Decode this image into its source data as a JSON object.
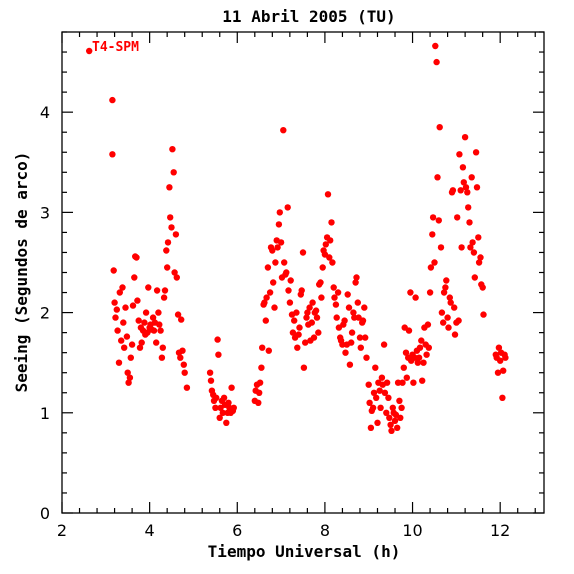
{
  "chart_data": {
    "type": "scatter",
    "title": "11 Abril 2005 (TU)",
    "xlabel": "Tiempo Universal (h)",
    "ylabel": "Seeing (Segundos de arco)",
    "xlim": [
      2,
      13
    ],
    "ylim": [
      0,
      4.8
    ],
    "xticks": [
      2,
      4,
      6,
      8,
      10,
      12
    ],
    "yticks": [
      0,
      1,
      2,
      3,
      4
    ],
    "grid": false,
    "marker_color": "#ff0000",
    "annotation": "T4-SPM",
    "series": [
      {
        "points": [
          [
            2.62,
            4.61
          ],
          [
            3.15,
            4.12
          ],
          [
            3.15,
            3.58
          ],
          [
            3.18,
            2.42
          ],
          [
            3.2,
            2.1
          ],
          [
            3.22,
            1.95
          ],
          [
            3.25,
            2.03
          ],
          [
            3.27,
            1.82
          ],
          [
            3.3,
            1.5
          ],
          [
            3.32,
            2.2
          ],
          [
            3.35,
            1.72
          ],
          [
            3.38,
            2.25
          ],
          [
            3.4,
            1.9
          ],
          [
            3.42,
            1.65
          ],
          [
            3.45,
            2.05
          ],
          [
            3.48,
            1.76
          ],
          [
            3.5,
            1.4
          ],
          [
            3.52,
            1.3
          ],
          [
            3.55,
            1.35
          ],
          [
            3.57,
            1.55
          ],
          [
            3.6,
            1.68
          ],
          [
            3.62,
            2.07
          ],
          [
            3.65,
            2.35
          ],
          [
            3.67,
            2.56
          ],
          [
            3.7,
            2.55
          ],
          [
            3.72,
            2.12
          ],
          [
            3.75,
            1.92
          ],
          [
            3.78,
            1.65
          ],
          [
            3.8,
            1.85
          ],
          [
            3.82,
            1.7
          ],
          [
            3.85,
            1.82
          ],
          [
            3.88,
            1.9
          ],
          [
            3.9,
            1.78
          ],
          [
            3.92,
            2.0
          ],
          [
            3.95,
            1.8
          ],
          [
            3.97,
            2.25
          ],
          [
            4.0,
            1.85
          ],
          [
            4.02,
            1.88
          ],
          [
            4.05,
            1.83
          ],
          [
            4.08,
            1.95
          ],
          [
            4.1,
            1.82
          ],
          [
            4.12,
            1.9
          ],
          [
            4.15,
            1.7
          ],
          [
            4.17,
            2.22
          ],
          [
            4.2,
            2.0
          ],
          [
            4.22,
            1.88
          ],
          [
            4.25,
            1.82
          ],
          [
            4.28,
            1.55
          ],
          [
            4.3,
            1.65
          ],
          [
            4.33,
            2.15
          ],
          [
            4.35,
            2.22
          ],
          [
            4.38,
            2.62
          ],
          [
            4.4,
            2.45
          ],
          [
            4.42,
            2.7
          ],
          [
            4.45,
            3.25
          ],
          [
            4.47,
            2.95
          ],
          [
            4.5,
            2.85
          ],
          [
            4.52,
            3.63
          ],
          [
            4.55,
            3.4
          ],
          [
            4.57,
            2.4
          ],
          [
            4.6,
            2.78
          ],
          [
            4.62,
            2.35
          ],
          [
            4.65,
            1.98
          ],
          [
            4.67,
            1.6
          ],
          [
            4.7,
            1.55
          ],
          [
            4.72,
            1.93
          ],
          [
            4.75,
            1.62
          ],
          [
            4.78,
            1.48
          ],
          [
            4.8,
            1.4
          ],
          [
            4.85,
            1.25
          ],
          [
            5.38,
            1.4
          ],
          [
            5.4,
            1.32
          ],
          [
            5.42,
            1.22
          ],
          [
            5.45,
            1.18
          ],
          [
            5.47,
            1.12
          ],
          [
            5.5,
            1.05
          ],
          [
            5.52,
            1.15
          ],
          [
            5.55,
            1.73
          ],
          [
            5.57,
            1.58
          ],
          [
            5.6,
            0.95
          ],
          [
            5.62,
            1.05
          ],
          [
            5.65,
            1.12
          ],
          [
            5.67,
            1.0
          ],
          [
            5.7,
            1.15
          ],
          [
            5.72,
            1.08
          ],
          [
            5.75,
            0.9
          ],
          [
            5.78,
            1.0
          ],
          [
            5.8,
            1.1
          ],
          [
            5.82,
            1.05
          ],
          [
            5.85,
            1.0
          ],
          [
            5.87,
            1.25
          ],
          [
            5.9,
            1.02
          ],
          [
            5.92,
            1.05
          ],
          [
            6.4,
            1.12
          ],
          [
            6.42,
            1.22
          ],
          [
            6.45,
            1.28
          ],
          [
            6.48,
            1.1
          ],
          [
            6.5,
            1.2
          ],
          [
            6.52,
            1.3
          ],
          [
            6.55,
            1.45
          ],
          [
            6.57,
            1.65
          ],
          [
            6.6,
            2.08
          ],
          [
            6.62,
            2.1
          ],
          [
            6.65,
            1.92
          ],
          [
            6.67,
            2.15
          ],
          [
            6.7,
            2.45
          ],
          [
            6.72,
            1.62
          ],
          [
            6.75,
            2.2
          ],
          [
            6.77,
            2.65
          ],
          [
            6.8,
            2.62
          ],
          [
            6.82,
            2.3
          ],
          [
            6.85,
            2.05
          ],
          [
            6.87,
            2.5
          ],
          [
            6.9,
            2.72
          ],
          [
            6.92,
            2.65
          ],
          [
            6.95,
            2.88
          ],
          [
            6.97,
            3.0
          ],
          [
            7.0,
            2.7
          ],
          [
            7.02,
            2.35
          ],
          [
            7.05,
            3.82
          ],
          [
            7.07,
            2.5
          ],
          [
            7.1,
            2.38
          ],
          [
            7.12,
            2.4
          ],
          [
            7.15,
            3.05
          ],
          [
            7.17,
            2.22
          ],
          [
            7.2,
            2.1
          ],
          [
            7.22,
            2.32
          ],
          [
            7.25,
            1.98
          ],
          [
            7.27,
            1.8
          ],
          [
            7.3,
            1.92
          ],
          [
            7.32,
            1.75
          ],
          [
            7.35,
            2.0
          ],
          [
            7.37,
            1.65
          ],
          [
            7.4,
            1.78
          ],
          [
            7.42,
            1.85
          ],
          [
            7.45,
            2.18
          ],
          [
            7.47,
            2.22
          ],
          [
            7.5,
            2.6
          ],
          [
            7.52,
            1.45
          ],
          [
            7.55,
            1.7
          ],
          [
            7.58,
            1.95
          ],
          [
            7.6,
            2.0
          ],
          [
            7.62,
            1.88
          ],
          [
            7.65,
            2.05
          ],
          [
            7.67,
            1.72
          ],
          [
            7.7,
            1.9
          ],
          [
            7.72,
            2.1
          ],
          [
            7.75,
            1.75
          ],
          [
            7.77,
            2.0
          ],
          [
            7.8,
            2.02
          ],
          [
            7.82,
            1.95
          ],
          [
            7.85,
            1.8
          ],
          [
            7.87,
            2.28
          ],
          [
            7.9,
            2.3
          ],
          [
            7.92,
            2.15
          ],
          [
            7.95,
            2.45
          ],
          [
            7.97,
            2.62
          ],
          [
            8.0,
            2.58
          ],
          [
            8.02,
            2.68
          ],
          [
            8.05,
            2.75
          ],
          [
            8.07,
            3.18
          ],
          [
            8.1,
            2.55
          ],
          [
            8.12,
            2.72
          ],
          [
            8.15,
            2.9
          ],
          [
            8.17,
            2.5
          ],
          [
            8.2,
            2.25
          ],
          [
            8.22,
            2.15
          ],
          [
            8.25,
            2.08
          ],
          [
            8.27,
            1.95
          ],
          [
            8.3,
            2.2
          ],
          [
            8.32,
            1.85
          ],
          [
            8.35,
            1.75
          ],
          [
            8.37,
            1.72
          ],
          [
            8.4,
            1.68
          ],
          [
            8.42,
            1.88
          ],
          [
            8.45,
            1.92
          ],
          [
            8.47,
            1.6
          ],
          [
            8.5,
            1.68
          ],
          [
            8.52,
            2.18
          ],
          [
            8.55,
            2.05
          ],
          [
            8.57,
            1.48
          ],
          [
            8.6,
            1.7
          ],
          [
            8.62,
            1.8
          ],
          [
            8.65,
            2.0
          ],
          [
            8.67,
            1.95
          ],
          [
            8.7,
            2.3
          ],
          [
            8.72,
            2.35
          ],
          [
            8.75,
            2.1
          ],
          [
            8.77,
            1.95
          ],
          [
            8.8,
            1.75
          ],
          [
            8.82,
            1.65
          ],
          [
            8.85,
            1.9
          ],
          [
            8.87,
            1.92
          ],
          [
            8.9,
            2.05
          ],
          [
            8.92,
            1.75
          ],
          [
            8.95,
            1.55
          ],
          [
            9.0,
            1.28
          ],
          [
            9.02,
            1.1
          ],
          [
            9.05,
            0.85
          ],
          [
            9.07,
            1.02
          ],
          [
            9.1,
            1.05
          ],
          [
            9.12,
            1.2
          ],
          [
            9.15,
            1.45
          ],
          [
            9.17,
            1.15
          ],
          [
            9.2,
            0.9
          ],
          [
            9.22,
            1.3
          ],
          [
            9.25,
            1.22
          ],
          [
            9.27,
            1.05
          ],
          [
            9.3,
            1.35
          ],
          [
            9.32,
            1.28
          ],
          [
            9.35,
            1.68
          ],
          [
            9.37,
            1.2
          ],
          [
            9.4,
            1.0
          ],
          [
            9.42,
            1.3
          ],
          [
            9.45,
            1.15
          ],
          [
            9.47,
            0.95
          ],
          [
            9.5,
            0.88
          ],
          [
            9.52,
            0.82
          ],
          [
            9.55,
            1.05
          ],
          [
            9.57,
            1.0
          ],
          [
            9.6,
            0.92
          ],
          [
            9.62,
            0.98
          ],
          [
            9.65,
            0.85
          ],
          [
            9.67,
            1.3
          ],
          [
            9.7,
            1.12
          ],
          [
            9.72,
            0.95
          ],
          [
            9.75,
            1.05
          ],
          [
            9.77,
            1.3
          ],
          [
            9.8,
            1.45
          ],
          [
            9.82,
            1.85
          ],
          [
            9.85,
            1.6
          ],
          [
            9.87,
            1.35
          ],
          [
            9.9,
            1.55
          ],
          [
            9.92,
            1.82
          ],
          [
            9.95,
            2.2
          ],
          [
            9.97,
            1.52
          ],
          [
            10.0,
            1.58
          ],
          [
            10.02,
            1.3
          ],
          [
            10.05,
            1.55
          ],
          [
            10.07,
            2.15
          ],
          [
            10.1,
            1.62
          ],
          [
            10.12,
            1.5
          ],
          [
            10.15,
            1.55
          ],
          [
            10.17,
            1.65
          ],
          [
            10.2,
            1.72
          ],
          [
            10.22,
            1.32
          ],
          [
            10.25,
            1.5
          ],
          [
            10.27,
            1.85
          ],
          [
            10.3,
            1.68
          ],
          [
            10.32,
            1.58
          ],
          [
            10.35,
            1.88
          ],
          [
            10.37,
            1.65
          ],
          [
            10.4,
            2.2
          ],
          [
            10.42,
            2.45
          ],
          [
            10.45,
            2.78
          ],
          [
            10.47,
            2.95
          ],
          [
            10.5,
            2.5
          ],
          [
            10.52,
            4.66
          ],
          [
            10.55,
            4.5
          ],
          [
            10.57,
            3.35
          ],
          [
            10.6,
            2.92
          ],
          [
            10.62,
            3.85
          ],
          [
            10.65,
            2.65
          ],
          [
            10.67,
            2.0
          ],
          [
            10.7,
            1.9
          ],
          [
            10.72,
            2.2
          ],
          [
            10.75,
            2.25
          ],
          [
            10.77,
            2.32
          ],
          [
            10.8,
            1.95
          ],
          [
            10.82,
            1.85
          ],
          [
            10.85,
            2.15
          ],
          [
            10.87,
            2.1
          ],
          [
            10.9,
            3.2
          ],
          [
            10.92,
            3.22
          ],
          [
            10.95,
            2.05
          ],
          [
            10.97,
            1.78
          ],
          [
            11.0,
            1.9
          ],
          [
            11.02,
            2.95
          ],
          [
            11.05,
            1.92
          ],
          [
            11.07,
            3.58
          ],
          [
            11.1,
            3.22
          ],
          [
            11.12,
            2.65
          ],
          [
            11.15,
            3.45
          ],
          [
            11.17,
            3.3
          ],
          [
            11.2,
            3.75
          ],
          [
            11.22,
            3.25
          ],
          [
            11.25,
            3.2
          ],
          [
            11.27,
            3.05
          ],
          [
            11.3,
            2.9
          ],
          [
            11.32,
            2.65
          ],
          [
            11.35,
            3.35
          ],
          [
            11.37,
            2.7
          ],
          [
            11.4,
            2.6
          ],
          [
            11.42,
            2.35
          ],
          [
            11.45,
            3.6
          ],
          [
            11.47,
            3.25
          ],
          [
            11.5,
            2.75
          ],
          [
            11.52,
            2.5
          ],
          [
            11.55,
            2.55
          ],
          [
            11.57,
            2.28
          ],
          [
            11.6,
            2.25
          ],
          [
            11.62,
            1.98
          ],
          [
            11.9,
            1.58
          ],
          [
            11.92,
            1.55
          ],
          [
            11.95,
            1.4
          ],
          [
            11.97,
            1.65
          ],
          [
            12.0,
            1.52
          ],
          [
            12.02,
            1.6
          ],
          [
            12.05,
            1.15
          ],
          [
            12.07,
            1.42
          ],
          [
            12.1,
            1.58
          ],
          [
            12.12,
            1.55
          ]
        ]
      }
    ]
  }
}
